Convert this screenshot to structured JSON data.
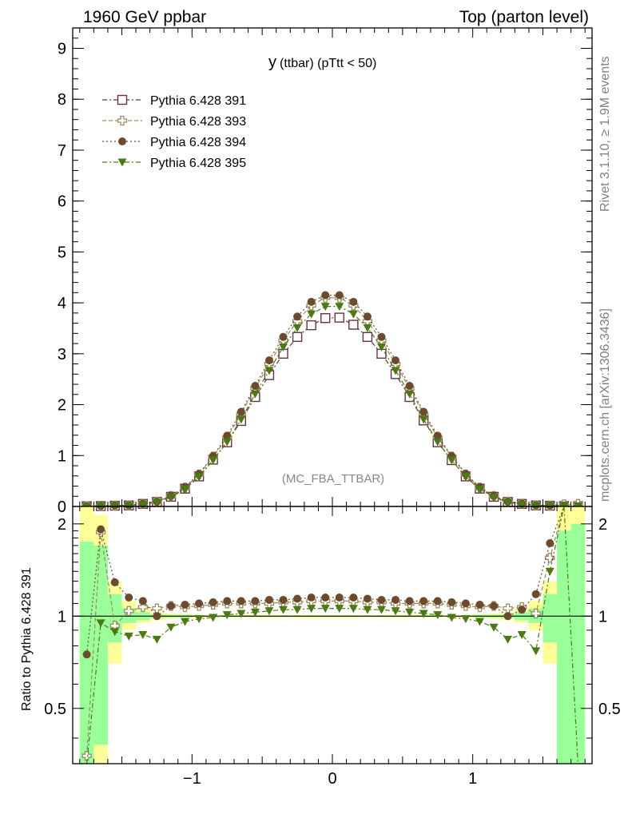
{
  "header": {
    "left": "1960 GeV ppbar",
    "right": "Top (parton level)"
  },
  "sidebar": {
    "rivet": "Rivet 3.1.10, ≥ 1.9M events",
    "mcplots": "mcplots.cern.ch [arXiv:1306.3436]"
  },
  "chart_data": {
    "type": "line",
    "title_main": "y",
    "title_sub": "(ttbar) (pTtt < 50)",
    "watermark": "(MC_FBA_TTBAR)",
    "ylabel_ratio": "Ratio to Pythia 6.428 391",
    "xlim": [
      -1.85,
      1.85
    ],
    "ylim_main": [
      0,
      9.4
    ],
    "ylim_ratio": [
      0.33,
      2.28
    ],
    "x_ticks": [
      -1,
      0,
      1
    ],
    "x_tick_labels": [
      "−1",
      "0",
      "1"
    ],
    "y_ticks_main": [
      0,
      1,
      2,
      3,
      4,
      5,
      6,
      7,
      8,
      9
    ],
    "y_tick_labels_main": [
      "0",
      "1",
      "2",
      "3",
      "4",
      "5",
      "6",
      "7",
      "8",
      "9"
    ],
    "y_ticks_ratio": [
      0.5,
      1,
      2
    ],
    "y_tick_labels_ratio": [
      "0.5",
      "1",
      "2"
    ],
    "legend_position": "top-left",
    "x": [
      -1.75,
      -1.65,
      -1.55,
      -1.45,
      -1.35,
      -1.25,
      -1.15,
      -1.05,
      -0.95,
      -0.85,
      -0.75,
      -0.65,
      -0.55,
      -0.45,
      -0.35,
      -0.25,
      -0.15,
      -0.05,
      0.05,
      0.15,
      0.25,
      0.35,
      0.45,
      0.55,
      0.65,
      0.75,
      0.85,
      0.95,
      1.05,
      1.15,
      1.25,
      1.35,
      1.45,
      1.55,
      1.65,
      1.75
    ],
    "series": [
      {
        "name": "Pythia 6.428 391",
        "color": "#6b3046",
        "marker": "open-square",
        "dash": "6,3,2,3",
        "values": [
          0.005,
          0.008,
          0.015,
          0.02,
          0.05,
          0.09,
          0.19,
          0.35,
          0.59,
          0.92,
          1.26,
          1.68,
          2.15,
          2.58,
          3.0,
          3.33,
          3.56,
          3.7,
          3.71,
          3.57,
          3.33,
          3.0,
          2.6,
          2.15,
          1.69,
          1.26,
          0.91,
          0.59,
          0.35,
          0.19,
          0.09,
          0.05,
          0.02,
          0.015,
          0.008,
          0.005
        ],
        "ratio": [
          1,
          1,
          1,
          1,
          1,
          1,
          1,
          1,
          1,
          1,
          1,
          1,
          1,
          1,
          1,
          1,
          1,
          1,
          1,
          1,
          1,
          1,
          1,
          1,
          1,
          1,
          1,
          1,
          1,
          1,
          1,
          1,
          1,
          1,
          1,
          1
        ]
      },
      {
        "name": "Pythia 6.428 393",
        "color": "#9a8a5c",
        "marker": "open-cross",
        "dash": "5,3",
        "values": [
          0.005,
          0.015,
          0.014,
          0.02,
          0.055,
          0.095,
          0.205,
          0.37,
          0.63,
          0.98,
          1.35,
          1.82,
          2.32,
          2.8,
          3.26,
          3.64,
          3.95,
          4.1,
          4.1,
          3.95,
          3.64,
          3.26,
          2.8,
          2.32,
          1.82,
          1.35,
          0.98,
          0.63,
          0.37,
          0.205,
          0.095,
          0.055,
          0.02,
          0.02,
          0.04,
          0.05
        ],
        "ratio": [
          0.35,
          1.88,
          0.93,
          1.04,
          1.07,
          1.06,
          1.08,
          1.07,
          1.08,
          1.09,
          1.1,
          1.1,
          1.1,
          1.1,
          1.11,
          1.11,
          1.12,
          1.12,
          1.12,
          1.12,
          1.11,
          1.11,
          1.1,
          1.1,
          1.1,
          1.1,
          1.09,
          1.08,
          1.07,
          1.08,
          1.06,
          1.07,
          1.02,
          1.55,
          2.3,
          2.3
        ]
      },
      {
        "name": "Pythia 6.428 394",
        "color": "#6b4a2e",
        "marker": "filled-circle",
        "dash": "2,3",
        "values": [
          0.004,
          0.015,
          0.02,
          0.023,
          0.058,
          0.095,
          0.21,
          0.38,
          0.64,
          0.99,
          1.39,
          1.86,
          2.37,
          2.87,
          3.33,
          3.73,
          4.02,
          4.15,
          4.15,
          4.02,
          3.73,
          3.33,
          2.87,
          2.37,
          1.86,
          1.39,
          0.99,
          0.64,
          0.38,
          0.21,
          0.095,
          0.058,
          0.023,
          0.02,
          0.015,
          0.004
        ],
        "ratio": [
          0.75,
          1.92,
          1.29,
          1.15,
          1.12,
          1.0,
          1.08,
          1.09,
          1.1,
          1.11,
          1.12,
          1.12,
          1.12,
          1.13,
          1.13,
          1.14,
          1.15,
          1.15,
          1.15,
          1.15,
          1.14,
          1.13,
          1.13,
          1.12,
          1.12,
          1.12,
          1.11,
          1.1,
          1.09,
          1.08,
          1.0,
          1.05,
          1.18,
          1.73,
          2.3,
          2.3
        ]
      },
      {
        "name": "Pythia 6.428 395",
        "color": "#4a7a10",
        "marker": "filled-triangle-down",
        "dash": "6,3,2,3",
        "values": [
          0.004,
          0.007,
          0.013,
          0.018,
          0.043,
          0.08,
          0.18,
          0.34,
          0.58,
          0.91,
          1.27,
          1.71,
          2.21,
          2.67,
          3.13,
          3.51,
          3.78,
          3.93,
          3.93,
          3.78,
          3.51,
          3.13,
          2.67,
          2.21,
          1.71,
          1.27,
          0.91,
          0.58,
          0.34,
          0.18,
          0.08,
          0.043,
          0.018,
          0.013,
          0.007,
          0.004
        ],
        "ratio": [
          0.3,
          0.95,
          0.89,
          0.86,
          0.87,
          0.84,
          0.92,
          0.96,
          0.98,
          0.99,
          1.01,
          1.02,
          1.03,
          1.04,
          1.05,
          1.05,
          1.06,
          1.06,
          1.06,
          1.06,
          1.05,
          1.05,
          1.04,
          1.03,
          1.02,
          1.01,
          0.99,
          0.98,
          0.96,
          0.92,
          0.84,
          0.87,
          0.77,
          1.4,
          2.3,
          0.3
        ]
      }
    ],
    "ratio_band_yellow": [
      [
        0.33,
        2.28
      ],
      [
        0.33,
        2.14
      ],
      [
        0.7,
        1.3
      ],
      [
        0.9,
        1.12
      ],
      [
        0.95,
        1.06
      ],
      [
        0.97,
        1.03
      ],
      [
        0.98,
        1.02
      ],
      [
        0.985,
        1.015
      ],
      [
        0.99,
        1.01
      ],
      [
        0.99,
        1.01
      ],
      [
        0.99,
        1.01
      ],
      [
        0.99,
        1.01
      ],
      [
        0.99,
        1.01
      ],
      [
        0.99,
        1.01
      ],
      [
        0.99,
        1.01
      ],
      [
        0.99,
        1.01
      ],
      [
        0.99,
        1.01
      ],
      [
        0.99,
        1.01
      ],
      [
        0.99,
        1.01
      ],
      [
        0.99,
        1.01
      ],
      [
        0.99,
        1.01
      ],
      [
        0.99,
        1.01
      ],
      [
        0.99,
        1.01
      ],
      [
        0.99,
        1.01
      ],
      [
        0.99,
        1.01
      ],
      [
        0.99,
        1.01
      ],
      [
        0.99,
        1.01
      ],
      [
        0.99,
        1.01
      ],
      [
        0.985,
        1.015
      ],
      [
        0.98,
        1.02
      ],
      [
        0.97,
        1.03
      ],
      [
        0.95,
        1.06
      ],
      [
        0.9,
        1.12
      ],
      [
        0.7,
        1.3
      ],
      [
        0.33,
        2.28
      ],
      [
        0.33,
        2.28
      ]
    ],
    "ratio_band_green": [
      [
        0.33,
        1.75
      ],
      [
        0.38,
        1.7
      ],
      [
        0.82,
        1.18
      ],
      [
        0.95,
        1.06
      ],
      [
        0.97,
        1.03
      ],
      [
        0.985,
        1.015
      ],
      [
        0.99,
        1.01
      ],
      [
        0.99,
        1.01
      ],
      [
        0.995,
        1.005
      ],
      [
        0.995,
        1.005
      ],
      [
        0.995,
        1.005
      ],
      [
        0.995,
        1.005
      ],
      [
        0.995,
        1.005
      ],
      [
        0.995,
        1.005
      ],
      [
        0.995,
        1.005
      ],
      [
        0.995,
        1.005
      ],
      [
        0.995,
        1.005
      ],
      [
        0.995,
        1.005
      ],
      [
        0.995,
        1.005
      ],
      [
        0.995,
        1.005
      ],
      [
        0.995,
        1.005
      ],
      [
        0.995,
        1.005
      ],
      [
        0.995,
        1.005
      ],
      [
        0.995,
        1.005
      ],
      [
        0.995,
        1.005
      ],
      [
        0.995,
        1.005
      ],
      [
        0.995,
        1.005
      ],
      [
        0.995,
        1.005
      ],
      [
        0.99,
        1.01
      ],
      [
        0.99,
        1.01
      ],
      [
        0.985,
        1.015
      ],
      [
        0.97,
        1.03
      ],
      [
        0.95,
        1.06
      ],
      [
        0.82,
        1.18
      ],
      [
        0.33,
        1.9
      ],
      [
        0.33,
        2.0
      ]
    ]
  }
}
